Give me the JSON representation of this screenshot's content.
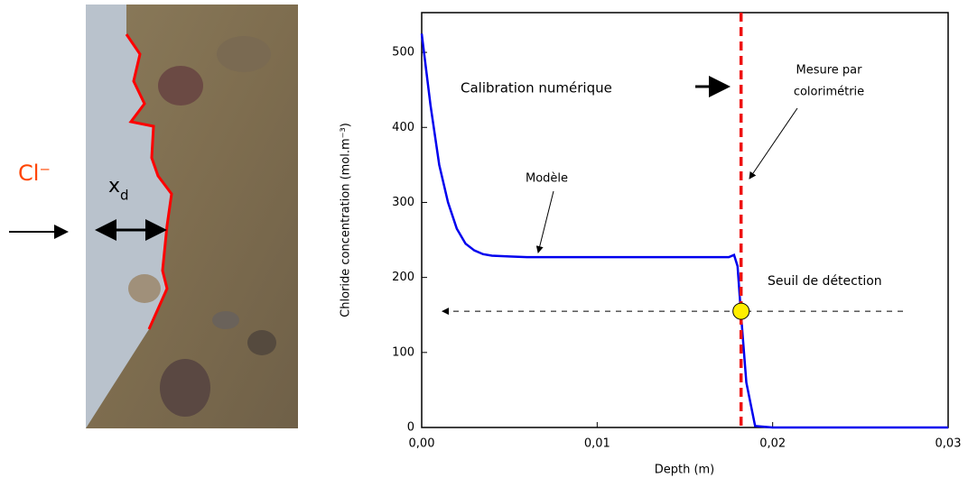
{
  "chart_data": {
    "type": "line",
    "x_label": "Depth (m)",
    "y_label": "Chloride concentration (mol.m⁻³)",
    "x": [
      0,
      0.0005,
      0.001,
      0.0015,
      0.002,
      0.0025,
      0.003,
      0.0035,
      0.004,
      0.005,
      0.006,
      0.008,
      0.01,
      0.012,
      0.014,
      0.016,
      0.0175,
      0.0178,
      0.018,
      0.0182,
      0.0185,
      0.019,
      0.02,
      0.025,
      0.03
    ],
    "values": [
      525,
      430,
      350,
      300,
      265,
      245,
      236,
      231,
      229,
      228,
      227,
      227,
      227,
      227,
      227,
      227,
      227,
      230,
      215,
      150,
      60,
      2,
      0,
      0,
      0
    ],
    "color": "#0000ee",
    "xlim": [
      0,
      0.03
    ],
    "xticks": [
      {
        "value": 0,
        "label": "0,00"
      },
      {
        "value": 0.01,
        "label": "0,01"
      },
      {
        "value": 0.02,
        "label": "0,02"
      },
      {
        "value": 0.03,
        "label": "0,03"
      }
    ],
    "ylim": [
      0,
      553
    ],
    "yticks": [
      0,
      100,
      200,
      300,
      400,
      500
    ],
    "grid": false,
    "measurement_depth": 0.0182,
    "measurement_color": "#ee1111",
    "detection_threshold": 155,
    "annotations": {
      "calibration": "Calibration numérique",
      "measure_line1": "Mesure par",
      "measure_line2": "colorimétrie",
      "model": "Modèle",
      "threshold": "Seuil de détection"
    }
  },
  "photo": {
    "ion_label": "Cl⁻",
    "depth_label": "x",
    "depth_subscript": "d"
  }
}
